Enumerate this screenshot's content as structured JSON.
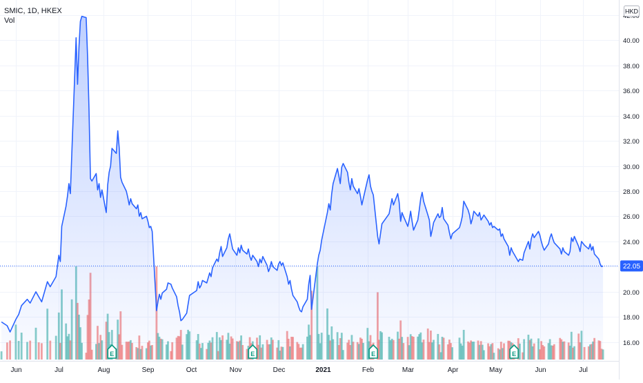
{
  "chart_data": {
    "type": "area",
    "symbol_label": "SMIC, 1D, HKEX",
    "volume_label": "Vol",
    "currency": "HKD",
    "last_price": 22.05,
    "last_price_label": "22.05",
    "y_ticks": [
      "16.00",
      "18.00",
      "20.00",
      "22.00",
      "24.00",
      "26.00",
      "28.00",
      "30.00",
      "32.00",
      "34.00",
      "36.00",
      "38.00",
      "40.00",
      "42.00"
    ],
    "ylim": [
      14.5,
      43.2
    ],
    "x_tick_labels": [
      "Jun",
      "Jul",
      "Aug",
      "Sep",
      "Oct",
      "Nov",
      "Dec",
      "2021",
      "Feb",
      "Mar",
      "Apr",
      "May",
      "Jun",
      "Jul"
    ],
    "x_tick_dates": [
      "2020-06-01",
      "2020-07-01",
      "2020-08-01",
      "2020-09-01",
      "2020-10-01",
      "2020-11-01",
      "2020-12-01",
      "2021-01-01",
      "2021-02-01",
      "2021-03-01",
      "2021-04-01",
      "2021-05-01",
      "2021-06-01",
      "2021-07-01"
    ],
    "xlim": [
      "2020-05-21",
      "2021-07-26"
    ],
    "earnings_dates": [
      "2020-08-07",
      "2020-11-13",
      "2021-02-05",
      "2021-05-14"
    ],
    "earnings_marker": "E",
    "colors": {
      "line": "#2962ff",
      "up_volume": "#26a69a",
      "down_volume": "#ef5350",
      "grid": "#f0f3fa",
      "last_price_tag": "#2962ff"
    },
    "price_series": [
      [
        "2020-05-22",
        17.6
      ],
      [
        "2020-05-26",
        17.3
      ],
      [
        "2020-05-28",
        16.8
      ],
      [
        "2020-06-01",
        17.8
      ],
      [
        "2020-06-03",
        18.2
      ],
      [
        "2020-06-05",
        18.9
      ],
      [
        "2020-06-09",
        19.4
      ],
      [
        "2020-06-11",
        19.1
      ],
      [
        "2020-06-15",
        20.0
      ],
      [
        "2020-06-17",
        19.6
      ],
      [
        "2020-06-19",
        19.2
      ],
      [
        "2020-06-23",
        20.8
      ],
      [
        "2020-06-25",
        20.4
      ],
      [
        "2020-06-29",
        21.2
      ],
      [
        "2020-07-01",
        22.9
      ],
      [
        "2020-07-02",
        22.4
      ],
      [
        "2020-07-03",
        25.2
      ],
      [
        "2020-07-06",
        26.8
      ],
      [
        "2020-07-07",
        27.6
      ],
      [
        "2020-07-08",
        28.6
      ],
      [
        "2020-07-09",
        27.8
      ],
      [
        "2020-07-10",
        31.0
      ],
      [
        "2020-07-13",
        40.2
      ],
      [
        "2020-07-14",
        36.5
      ],
      [
        "2020-07-15",
        39.5
      ],
      [
        "2020-07-16",
        41.5
      ],
      [
        "2020-07-17",
        41.9
      ],
      [
        "2020-07-20",
        41.8
      ],
      [
        "2020-07-21",
        38.6
      ],
      [
        "2020-07-22",
        34.5
      ],
      [
        "2020-07-23",
        29.0
      ],
      [
        "2020-07-24",
        28.8
      ],
      [
        "2020-07-27",
        29.4
      ],
      [
        "2020-07-28",
        28.1
      ],
      [
        "2020-07-29",
        28.6
      ],
      [
        "2020-07-30",
        27.5
      ],
      [
        "2020-07-31",
        28.1
      ],
      [
        "2020-08-03",
        26.3
      ],
      [
        "2020-08-04",
        28.5
      ],
      [
        "2020-08-05",
        29.5
      ],
      [
        "2020-08-06",
        30.0
      ],
      [
        "2020-08-07",
        31.4
      ],
      [
        "2020-08-10",
        31.0
      ],
      [
        "2020-08-11",
        32.8
      ],
      [
        "2020-08-12",
        31.5
      ],
      [
        "2020-08-13",
        29.1
      ],
      [
        "2020-08-14",
        28.7
      ],
      [
        "2020-08-17",
        28.0
      ],
      [
        "2020-08-18",
        27.5
      ],
      [
        "2020-08-19",
        26.9
      ],
      [
        "2020-08-20",
        27.4
      ],
      [
        "2020-08-21",
        27.0
      ],
      [
        "2020-08-24",
        26.6
      ],
      [
        "2020-08-25",
        26.9
      ],
      [
        "2020-08-26",
        26.0
      ],
      [
        "2020-08-27",
        26.3
      ],
      [
        "2020-08-28",
        25.8
      ],
      [
        "2020-08-31",
        26.0
      ],
      [
        "2020-09-01",
        25.6
      ],
      [
        "2020-09-02",
        25.1
      ],
      [
        "2020-09-03",
        25.2
      ],
      [
        "2020-09-04",
        24.8
      ],
      [
        "2020-09-07",
        18.5
      ],
      [
        "2020-09-08",
        19.2
      ],
      [
        "2020-09-09",
        19.8
      ],
      [
        "2020-09-10",
        19.4
      ],
      [
        "2020-09-11",
        19.9
      ],
      [
        "2020-09-14",
        20.2
      ],
      [
        "2020-09-15",
        20.7
      ],
      [
        "2020-09-17",
        20.6
      ],
      [
        "2020-09-18",
        20.3
      ],
      [
        "2020-09-21",
        19.6
      ],
      [
        "2020-09-22",
        18.9
      ],
      [
        "2020-09-23",
        18.4
      ],
      [
        "2020-09-24",
        17.7
      ],
      [
        "2020-09-25",
        17.8
      ],
      [
        "2020-09-28",
        18.3
      ],
      [
        "2020-09-29",
        19.0
      ],
      [
        "2020-09-30",
        19.7
      ],
      [
        "2020-10-05",
        20.1
      ],
      [
        "2020-10-06",
        20.8
      ],
      [
        "2020-10-07",
        20.3
      ],
      [
        "2020-10-08",
        20.5
      ],
      [
        "2020-10-09",
        20.9
      ],
      [
        "2020-10-12",
        20.7
      ],
      [
        "2020-10-13",
        21.1
      ],
      [
        "2020-10-14",
        21.5
      ],
      [
        "2020-10-15",
        21.2
      ],
      [
        "2020-10-16",
        21.9
      ],
      [
        "2020-10-19",
        22.6
      ],
      [
        "2020-10-20",
        22.4
      ],
      [
        "2020-10-21",
        23.1
      ],
      [
        "2020-10-22",
        23.6
      ],
      [
        "2020-10-23",
        22.8
      ],
      [
        "2020-10-26",
        23.5
      ],
      [
        "2020-10-27",
        24.2
      ],
      [
        "2020-10-28",
        24.6
      ],
      [
        "2020-10-29",
        24.0
      ],
      [
        "2020-10-30",
        23.4
      ],
      [
        "2020-11-02",
        22.9
      ],
      [
        "2020-11-03",
        23.5
      ],
      [
        "2020-11-04",
        23.1
      ],
      [
        "2020-11-05",
        23.7
      ],
      [
        "2020-11-06",
        23.3
      ],
      [
        "2020-11-09",
        23.0
      ],
      [
        "2020-11-10",
        23.4
      ],
      [
        "2020-11-11",
        22.8
      ],
      [
        "2020-11-12",
        22.5
      ],
      [
        "2020-11-13",
        22.9
      ],
      [
        "2020-11-16",
        22.4
      ],
      [
        "2020-11-17",
        22.0
      ],
      [
        "2020-11-18",
        22.6
      ],
      [
        "2020-11-19",
        22.3
      ],
      [
        "2020-11-20",
        22.8
      ],
      [
        "2020-11-23",
        22.1
      ],
      [
        "2020-11-24",
        21.6
      ],
      [
        "2020-11-25",
        21.9
      ],
      [
        "2020-11-26",
        22.4
      ],
      [
        "2020-11-27",
        22.0
      ],
      [
        "2020-11-30",
        21.7
      ],
      [
        "2020-12-01",
        22.2
      ],
      [
        "2020-12-02",
        22.4
      ],
      [
        "2020-12-03",
        22.1
      ],
      [
        "2020-12-04",
        22.3
      ],
      [
        "2020-12-07",
        21.2
      ],
      [
        "2020-12-08",
        20.6
      ],
      [
        "2020-12-09",
        20.9
      ],
      [
        "2020-12-10",
        20.2
      ],
      [
        "2020-12-11",
        19.7
      ],
      [
        "2020-12-14",
        19.2
      ],
      [
        "2020-12-15",
        18.8
      ],
      [
        "2020-12-16",
        18.5
      ],
      [
        "2020-12-17",
        18.4
      ],
      [
        "2020-12-18",
        18.8
      ],
      [
        "2020-12-21",
        19.4
      ],
      [
        "2020-12-22",
        20.6
      ],
      [
        "2020-12-23",
        21.3
      ],
      [
        "2020-12-24",
        18.6
      ],
      [
        "2020-12-28",
        22.2
      ],
      [
        "2020-12-29",
        22.9
      ],
      [
        "2020-12-30",
        23.3
      ],
      [
        "2020-12-31",
        24.1
      ],
      [
        "2021-01-04",
        26.3
      ],
      [
        "2021-01-05",
        27.0
      ],
      [
        "2021-01-06",
        26.5
      ],
      [
        "2021-01-07",
        27.8
      ],
      [
        "2021-01-08",
        28.6
      ],
      [
        "2021-01-11",
        29.8
      ],
      [
        "2021-01-12",
        29.2
      ],
      [
        "2021-01-13",
        28.6
      ],
      [
        "2021-01-14",
        29.9
      ],
      [
        "2021-01-15",
        30.2
      ],
      [
        "2021-01-18",
        29.5
      ],
      [
        "2021-01-19",
        28.7
      ],
      [
        "2021-01-20",
        28.1
      ],
      [
        "2021-01-21",
        29.0
      ],
      [
        "2021-01-22",
        28.4
      ],
      [
        "2021-01-25",
        27.8
      ],
      [
        "2021-01-26",
        28.2
      ],
      [
        "2021-01-27",
        27.6
      ],
      [
        "2021-01-28",
        26.9
      ],
      [
        "2021-01-29",
        27.4
      ],
      [
        "2021-02-01",
        28.9
      ],
      [
        "2021-02-02",
        29.3
      ],
      [
        "2021-02-03",
        28.4
      ],
      [
        "2021-02-04",
        28.0
      ],
      [
        "2021-02-05",
        27.7
      ],
      [
        "2021-02-08",
        24.4
      ],
      [
        "2021-02-09",
        23.8
      ],
      [
        "2021-02-10",
        24.6
      ],
      [
        "2021-02-11",
        25.4
      ],
      [
        "2021-02-16",
        26.2
      ],
      [
        "2021-02-17",
        26.8
      ],
      [
        "2021-02-18",
        27.4
      ],
      [
        "2021-02-19",
        26.9
      ],
      [
        "2021-02-22",
        27.8
      ],
      [
        "2021-02-23",
        27.1
      ],
      [
        "2021-02-24",
        25.6
      ],
      [
        "2021-02-25",
        26.3
      ],
      [
        "2021-02-26",
        26.0
      ],
      [
        "2021-03-01",
        25.2
      ],
      [
        "2021-03-02",
        25.7
      ],
      [
        "2021-03-03",
        26.4
      ],
      [
        "2021-03-04",
        25.6
      ],
      [
        "2021-03-05",
        24.9
      ],
      [
        "2021-03-08",
        25.7
      ],
      [
        "2021-03-09",
        26.5
      ],
      [
        "2021-03-10",
        27.4
      ],
      [
        "2021-03-11",
        27.9
      ],
      [
        "2021-03-12",
        27.2
      ],
      [
        "2021-03-15",
        26.1
      ],
      [
        "2021-03-16",
        25.7
      ],
      [
        "2021-03-17",
        24.4
      ],
      [
        "2021-03-18",
        24.9
      ],
      [
        "2021-03-19",
        25.5
      ],
      [
        "2021-03-22",
        26.2
      ],
      [
        "2021-03-23",
        25.9
      ],
      [
        "2021-03-24",
        26.0
      ],
      [
        "2021-03-25",
        26.7
      ],
      [
        "2021-03-26",
        25.8
      ],
      [
        "2021-03-29",
        25.3
      ],
      [
        "2021-03-30",
        24.7
      ],
      [
        "2021-03-31",
        24.2
      ],
      [
        "2021-04-01",
        24.6
      ],
      [
        "2021-04-06",
        25.1
      ],
      [
        "2021-04-07",
        25.5
      ],
      [
        "2021-04-08",
        26.0
      ],
      [
        "2021-04-09",
        27.2
      ],
      [
        "2021-04-12",
        26.5
      ],
      [
        "2021-04-13",
        26.1
      ],
      [
        "2021-04-14",
        25.4
      ],
      [
        "2021-04-15",
        25.8
      ],
      [
        "2021-04-16",
        26.4
      ],
      [
        "2021-04-19",
        26.0
      ],
      [
        "2021-04-20",
        26.3
      ],
      [
        "2021-04-21",
        25.7
      ],
      [
        "2021-04-22",
        25.9
      ],
      [
        "2021-04-23",
        26.1
      ],
      [
        "2021-04-26",
        25.6
      ],
      [
        "2021-04-27",
        25.3
      ],
      [
        "2021-04-28",
        25.5
      ],
      [
        "2021-04-29",
        25.1
      ],
      [
        "2021-04-30",
        25.2
      ],
      [
        "2021-05-03",
        24.9
      ],
      [
        "2021-05-04",
        25.0
      ],
      [
        "2021-05-05",
        24.4
      ],
      [
        "2021-05-06",
        24.6
      ],
      [
        "2021-05-07",
        24.2
      ],
      [
        "2021-05-10",
        23.6
      ],
      [
        "2021-05-11",
        22.9
      ],
      [
        "2021-05-12",
        23.5
      ],
      [
        "2021-05-13",
        23.2
      ],
      [
        "2021-05-14",
        23.0
      ],
      [
        "2021-05-17",
        22.4
      ],
      [
        "2021-05-18",
        22.6
      ],
      [
        "2021-05-20",
        22.5
      ],
      [
        "2021-05-21",
        23.1
      ],
      [
        "2021-05-24",
        24.0
      ],
      [
        "2021-05-25",
        23.4
      ],
      [
        "2021-05-26",
        24.2
      ],
      [
        "2021-05-27",
        24.6
      ],
      [
        "2021-05-28",
        24.3
      ],
      [
        "2021-05-31",
        24.8
      ],
      [
        "2021-06-01",
        24.5
      ],
      [
        "2021-06-02",
        24.0
      ],
      [
        "2021-06-03",
        23.6
      ],
      [
        "2021-06-04",
        23.3
      ],
      [
        "2021-06-07",
        23.8
      ],
      [
        "2021-06-08",
        24.3
      ],
      [
        "2021-06-09",
        24.6
      ],
      [
        "2021-06-10",
        24.2
      ],
      [
        "2021-06-11",
        23.9
      ],
      [
        "2021-06-15",
        23.4
      ],
      [
        "2021-06-16",
        23.0
      ],
      [
        "2021-06-17",
        23.5
      ],
      [
        "2021-06-18",
        23.2
      ],
      [
        "2021-06-21",
        22.9
      ],
      [
        "2021-06-22",
        23.2
      ],
      [
        "2021-06-23",
        24.3
      ],
      [
        "2021-06-24",
        24.0
      ],
      [
        "2021-06-25",
        24.4
      ],
      [
        "2021-06-28",
        23.6
      ],
      [
        "2021-06-29",
        23.2
      ],
      [
        "2021-06-30",
        24.0
      ],
      [
        "2021-07-02",
        23.7
      ],
      [
        "2021-07-05",
        23.4
      ],
      [
        "2021-07-06",
        23.8
      ],
      [
        "2021-07-07",
        23.3
      ],
      [
        "2021-07-08",
        23.6
      ],
      [
        "2021-07-09",
        23.0
      ],
      [
        "2021-07-12",
        22.6
      ],
      [
        "2021-07-13",
        22.2
      ],
      [
        "2021-07-14",
        22.0
      ],
      [
        "2021-07-15",
        22.05
      ]
    ]
  }
}
